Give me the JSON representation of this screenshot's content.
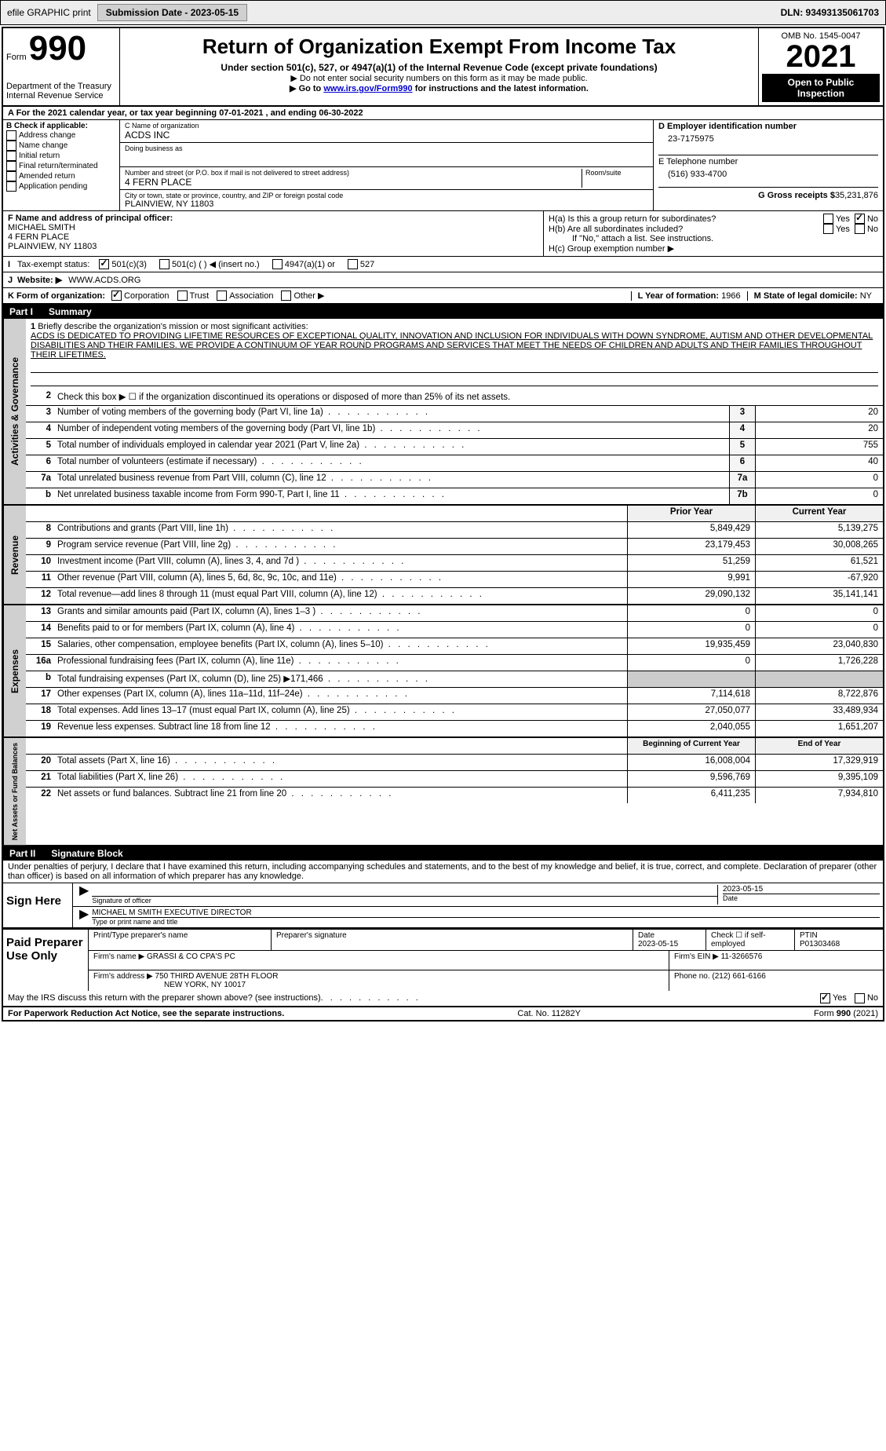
{
  "header": {
    "efile": "efile GRAPHIC print",
    "submission_label": "Submission Date - 2023-05-15",
    "dln": "DLN: 93493135061703"
  },
  "form": {
    "form_label": "Form",
    "number": "990",
    "title": "Return of Organization Exempt From Income Tax",
    "subtitle": "Under section 501(c), 527, or 4947(a)(1) of the Internal Revenue Code (except private foundations)",
    "note1": "▶ Do not enter social security numbers on this form as it may be made public.",
    "note2": "▶ Go to ",
    "note2_link": "www.irs.gov/Form990",
    "note2_suffix": " for instructions and the latest information.",
    "dept": "Department of the Treasury",
    "irs": "Internal Revenue Service",
    "omb": "OMB No. 1545-0047",
    "year": "2021",
    "inspection": "Open to Public Inspection"
  },
  "section_a": "A For the 2021 calendar year, or tax year beginning 07-01-2021    , and ending 06-30-2022",
  "section_b": {
    "label": "B Check if applicable:",
    "items": [
      "Address change",
      "Name change",
      "Initial return",
      "Final return/terminated",
      "Amended return",
      "Application pending"
    ]
  },
  "section_c": {
    "name_label": "C Name of organization",
    "name": "ACDS INC",
    "dba_label": "Doing business as",
    "addr_label": "Number and street (or P.O. box if mail is not delivered to street address)",
    "room_label": "Room/suite",
    "addr": "4 FERN PLACE",
    "city_label": "City or town, state or province, country, and ZIP or foreign postal code",
    "city": "PLAINVIEW, NY  11803"
  },
  "section_d": {
    "ein_label": "D Employer identification number",
    "ein": "23-7175975",
    "phone_label": "E Telephone number",
    "phone": "(516) 933-4700",
    "gross_label": "G Gross receipts $",
    "gross": "35,231,876"
  },
  "section_f": {
    "label": "F Name and address of principal officer:",
    "name": "MICHAEL SMITH",
    "addr1": "4 FERN PLACE",
    "addr2": "PLAINVIEW, NY  11803"
  },
  "section_h": {
    "ha": "H(a)  Is this a group return for subordinates?",
    "hb": "H(b)  Are all subordinates included?",
    "hb_note": "If \"No,\" attach a list. See instructions.",
    "hc": "H(c)  Group exemption number ▶",
    "yes": "Yes",
    "no": "No"
  },
  "tax_status": {
    "label_i": "I",
    "label": "Tax-exempt status:",
    "opt1": "501(c)(3)",
    "opt2": "501(c) (  ) ◀ (insert no.)",
    "opt3": "4947(a)(1) or",
    "opt4": "527"
  },
  "website": {
    "label_j": "J",
    "label": "Website: ▶",
    "value": "WWW.ACDS.ORG"
  },
  "section_k": {
    "label": "K Form of organization:",
    "opts": [
      "Corporation",
      "Trust",
      "Association",
      "Other ▶"
    ]
  },
  "section_l": {
    "label": "L Year of formation:",
    "value": "1966"
  },
  "section_m": {
    "label": "M State of legal domicile:",
    "value": "NY"
  },
  "part1": {
    "label": "Part I",
    "title": "Summary"
  },
  "summary": {
    "line1_label": "1",
    "line1_text": "Briefly describe the organization's mission or most significant activities:",
    "mission": "ACDS IS DEDICATED TO PROVIDING LIFETIME RESOURCES OF EXCEPTIONAL QUALITY, INNOVATION AND INCLUSION FOR INDIVIDUALS WITH DOWN SYNDROME, AUTISM AND OTHER DEVELOPMENTAL DISABILITIES AND THEIR FAMILIES. WE PROVIDE A CONTINUUM OF YEAR ROUND PROGRAMS AND SERVICES THAT MEET THE NEEDS OF CHILDREN AND ADULTS AND THEIR FAMILIES THROUGHOUT THEIR LIFETIMES.",
    "line2": "Check this box ▶ ☐ if the organization discontinued its operations or disposed of more than 25% of its net assets.",
    "lines": [
      {
        "n": "3",
        "t": "Number of voting members of the governing body (Part VI, line 1a)",
        "c": "3",
        "v": "20"
      },
      {
        "n": "4",
        "t": "Number of independent voting members of the governing body (Part VI, line 1b)",
        "c": "4",
        "v": "20"
      },
      {
        "n": "5",
        "t": "Total number of individuals employed in calendar year 2021 (Part V, line 2a)",
        "c": "5",
        "v": "755"
      },
      {
        "n": "6",
        "t": "Total number of volunteers (estimate if necessary)",
        "c": "6",
        "v": "40"
      },
      {
        "n": "7a",
        "t": "Total unrelated business revenue from Part VIII, column (C), line 12",
        "c": "7a",
        "v": "0"
      },
      {
        "n": "b",
        "t": "Net unrelated business taxable income from Form 990-T, Part I, line 11",
        "c": "7b",
        "v": "0"
      }
    ]
  },
  "revenue": {
    "vert": "Revenue",
    "py_header": "Prior Year",
    "cy_header": "Current Year",
    "lines": [
      {
        "n": "8",
        "t": "Contributions and grants (Part VIII, line 1h)",
        "py": "5,849,429",
        "cy": "5,139,275"
      },
      {
        "n": "9",
        "t": "Program service revenue (Part VIII, line 2g)",
        "py": "23,179,453",
        "cy": "30,008,265"
      },
      {
        "n": "10",
        "t": "Investment income (Part VIII, column (A), lines 3, 4, and 7d )",
        "py": "51,259",
        "cy": "61,521"
      },
      {
        "n": "11",
        "t": "Other revenue (Part VIII, column (A), lines 5, 6d, 8c, 9c, 10c, and 11e)",
        "py": "9,991",
        "cy": "-67,920"
      },
      {
        "n": "12",
        "t": "Total revenue—add lines 8 through 11 (must equal Part VIII, column (A), line 12)",
        "py": "29,090,132",
        "cy": "35,141,141"
      }
    ]
  },
  "expenses": {
    "vert": "Expenses",
    "lines": [
      {
        "n": "13",
        "t": "Grants and similar amounts paid (Part IX, column (A), lines 1–3 )",
        "py": "0",
        "cy": "0"
      },
      {
        "n": "14",
        "t": "Benefits paid to or for members (Part IX, column (A), line 4)",
        "py": "0",
        "cy": "0"
      },
      {
        "n": "15",
        "t": "Salaries, other compensation, employee benefits (Part IX, column (A), lines 5–10)",
        "py": "19,935,459",
        "cy": "23,040,830"
      },
      {
        "n": "16a",
        "t": "Professional fundraising fees (Part IX, column (A), line 11e)",
        "py": "0",
        "cy": "1,726,228"
      },
      {
        "n": "b",
        "t": "Total fundraising expenses (Part IX, column (D), line 25) ▶171,466",
        "py": "",
        "cy": ""
      },
      {
        "n": "17",
        "t": "Other expenses (Part IX, column (A), lines 11a–11d, 11f–24e)",
        "py": "7,114,618",
        "cy": "8,722,876"
      },
      {
        "n": "18",
        "t": "Total expenses. Add lines 13–17 (must equal Part IX, column (A), line 25)",
        "py": "27,050,077",
        "cy": "33,489,934"
      },
      {
        "n": "19",
        "t": "Revenue less expenses. Subtract line 18 from line 12",
        "py": "2,040,055",
        "cy": "1,651,207"
      }
    ]
  },
  "netassets": {
    "vert": "Net Assets or Fund Balances",
    "by_header": "Beginning of Current Year",
    "ey_header": "End of Year",
    "lines": [
      {
        "n": "20",
        "t": "Total assets (Part X, line 16)",
        "py": "16,008,004",
        "cy": "17,329,919"
      },
      {
        "n": "21",
        "t": "Total liabilities (Part X, line 26)",
        "py": "9,596,769",
        "cy": "9,395,109"
      },
      {
        "n": "22",
        "t": "Net assets or fund balances. Subtract line 21 from line 20",
        "py": "6,411,235",
        "cy": "7,934,810"
      }
    ]
  },
  "activities_vert": "Activities & Governance",
  "part2": {
    "label": "Part II",
    "title": "Signature Block"
  },
  "declaration": "Under penalties of perjury, I declare that I have examined this return, including accompanying schedules and statements, and to the best of my knowledge and belief, it is true, correct, and complete. Declaration of preparer (other than officer) is based on all information of which preparer has any knowledge.",
  "sign": {
    "label": "Sign Here",
    "sig_officer": "Signature of officer",
    "date": "Date",
    "date_val": "2023-05-15",
    "name": "MICHAEL M SMITH  EXECUTIVE DIRECTOR",
    "name_label": "Type or print name and title"
  },
  "preparer": {
    "label": "Paid Preparer Use Only",
    "h1": "Print/Type preparer's name",
    "h2": "Preparer's signature",
    "h3": "Date",
    "h3v": "2023-05-15",
    "h4": "Check ☐ if self-employed",
    "h5": "PTIN",
    "h5v": "P01303468",
    "firm_label": "Firm's name    ▶",
    "firm": "GRASSI & CO CPA'S PC",
    "ein_label": "Firm's EIN ▶",
    "ein": "11-3266576",
    "addr_label": "Firm's address ▶",
    "addr1": "750 THIRD AVENUE 28TH FLOOR",
    "addr2": "NEW YORK, NY  10017",
    "phone_label": "Phone no.",
    "phone": "(212) 661-6166"
  },
  "discuss": {
    "text": "May the IRS discuss this return with the preparer shown above? (see instructions)",
    "yes": "Yes",
    "no": "No"
  },
  "footer": {
    "left": "For Paperwork Reduction Act Notice, see the separate instructions.",
    "center": "Cat. No. 11282Y",
    "right": "Form 990 (2021)"
  }
}
